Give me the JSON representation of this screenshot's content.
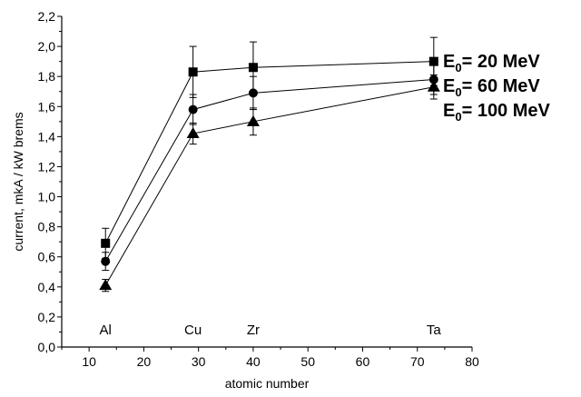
{
  "chart_data": {
    "type": "line",
    "xlabel": "atomic number",
    "ylabel": "current, mkA / kW brems",
    "xlim": [
      5,
      80
    ],
    "ylim": [
      0.0,
      2.2
    ],
    "xticks": [
      10,
      20,
      30,
      40,
      50,
      60,
      70,
      80
    ],
    "yticks": [
      0.0,
      0.2,
      0.4,
      0.6,
      0.8,
      1.0,
      1.2,
      1.4,
      1.6,
      1.8,
      2.0,
      2.2
    ],
    "x": [
      13,
      29,
      40,
      73
    ],
    "annotations": [
      {
        "text": "Al",
        "x": 13
      },
      {
        "text": "Cu",
        "x": 29
      },
      {
        "text": "Zr",
        "x": 40
      },
      {
        "text": "Ta",
        "x": 73
      }
    ],
    "series": [
      {
        "name": "E0= 20 MeV",
        "label_main": "E",
        "label_sub": "0",
        "label_rest": "= 20 MeV",
        "marker": "square",
        "values": [
          0.69,
          1.83,
          1.86,
          1.9
        ],
        "errors": [
          0.1,
          0.17,
          0.17,
          0.16
        ]
      },
      {
        "name": "E0= 60 MeV",
        "label_main": "E",
        "label_sub": "0",
        "label_rest": "= 60 MeV",
        "marker": "circle",
        "values": [
          0.57,
          1.58,
          1.69,
          1.78
        ],
        "errors": [
          0.06,
          0.1,
          0.11,
          0.1
        ]
      },
      {
        "name": "E0= 100 MeV",
        "label_main": "E",
        "label_sub": "0",
        "label_rest": "= 100 MeV",
        "marker": "triangle",
        "values": [
          0.41,
          1.42,
          1.5,
          1.73
        ],
        "errors": [
          0.04,
          0.07,
          0.09,
          0.08
        ]
      }
    ],
    "grid": false,
    "legend_placement": "right"
  }
}
